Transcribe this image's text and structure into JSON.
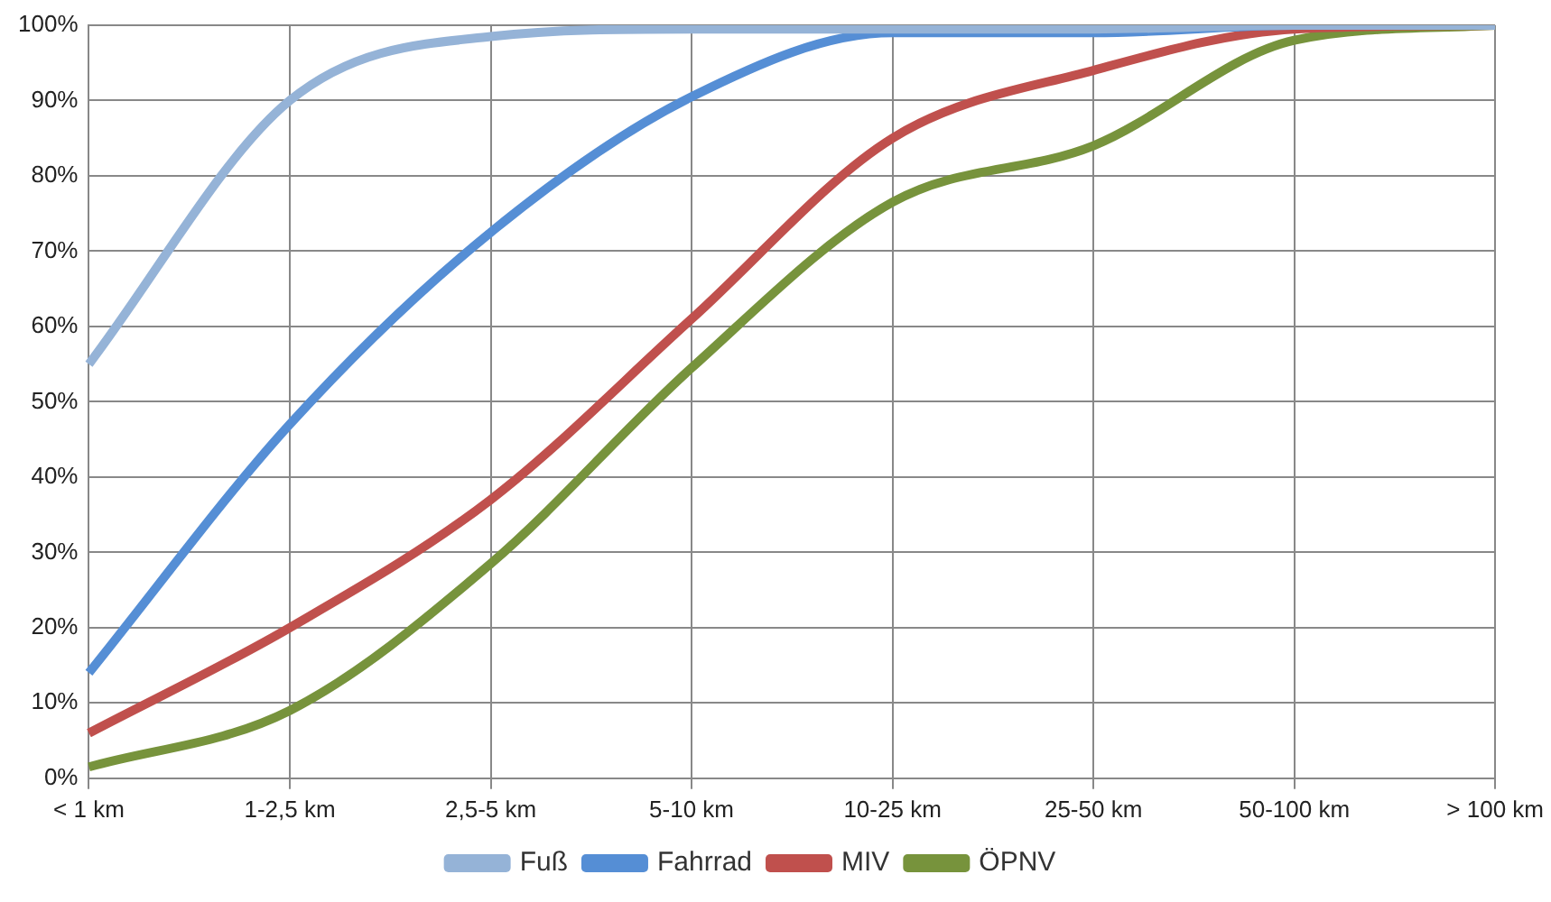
{
  "chart_data": {
    "type": "line",
    "categories": [
      "< 1 km",
      "1-2,5 km",
      "2,5-5 km",
      "5-10 km",
      "10-25 km",
      "25-50 km",
      "50-100 km",
      "> 100 km"
    ],
    "series": [
      {
        "name": "Fuß",
        "color": "#95b3d7",
        "values": [
          55,
          90,
          98.5,
          99.5,
          99.5,
          99.5,
          100,
          100
        ]
      },
      {
        "name": "Fahrrad",
        "color": "#558ed5",
        "values": [
          14,
          47,
          72.5,
          90.5,
          99,
          99,
          100,
          100
        ]
      },
      {
        "name": "MIV",
        "color": "#c0504d",
        "values": [
          6,
          20,
          37,
          61,
          85,
          94,
          99.5,
          100
        ]
      },
      {
        "name": "ÖPNV",
        "color": "#77933c",
        "values": [
          1.5,
          9,
          28.5,
          54.5,
          76.5,
          84,
          98,
          100
        ]
      }
    ],
    "ylim": [
      0,
      100
    ],
    "yticks": [
      {
        "value": 0,
        "label": "0%"
      },
      {
        "value": 10,
        "label": "10%"
      },
      {
        "value": 20,
        "label": "20%"
      },
      {
        "value": 30,
        "label": "30%"
      },
      {
        "value": 40,
        "label": "40%"
      },
      {
        "value": 50,
        "label": "50%"
      },
      {
        "value": 60,
        "label": "60%"
      },
      {
        "value": 70,
        "label": "70%"
      },
      {
        "value": 80,
        "label": "80%"
      },
      {
        "value": 90,
        "label": "90%"
      },
      {
        "value": 100,
        "label": "100%"
      }
    ],
    "grid": true,
    "legend": "bottom",
    "marker": "none",
    "line_style": "solid"
  }
}
